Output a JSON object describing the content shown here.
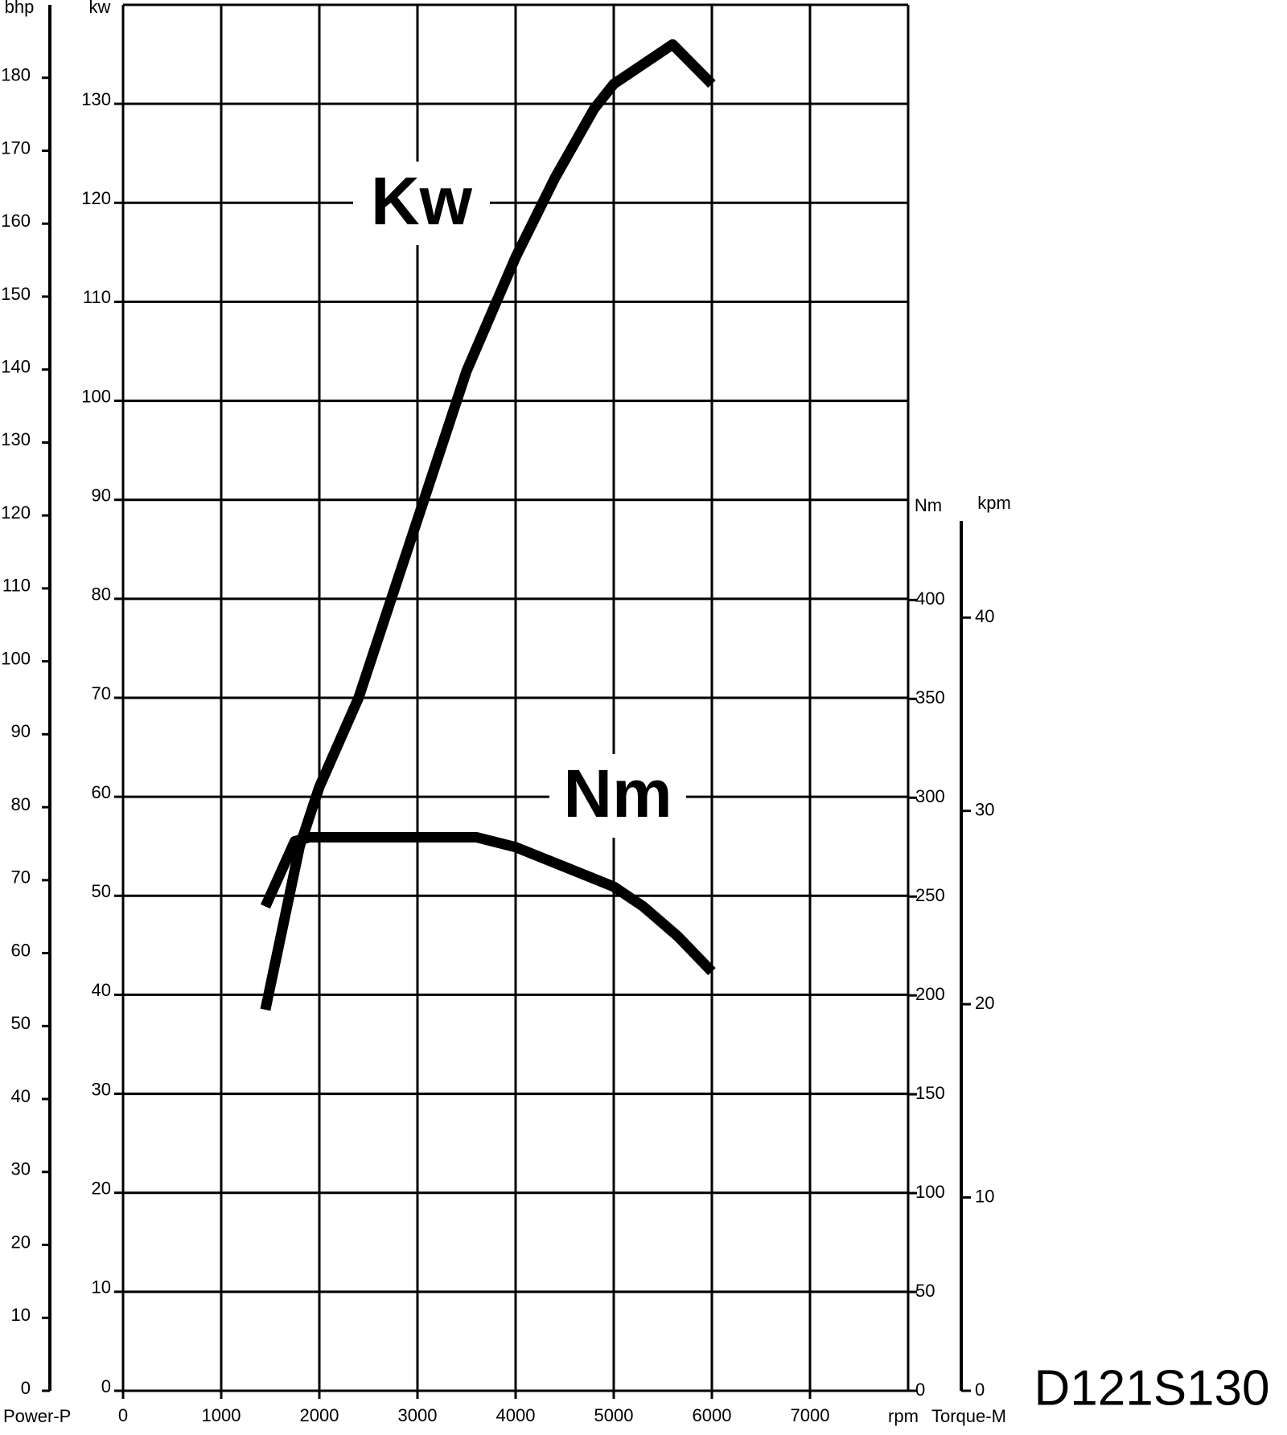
{
  "chart_data": {
    "type": "line",
    "xlabel": "rpm",
    "ylabel": "kw",
    "y2label": "Nm",
    "power_title": "Power-P",
    "torque_title": "Torque-M",
    "annotations": [
      "Kw",
      "Nm"
    ],
    "model": "D121S130",
    "xlim": [
      0,
      8000
    ],
    "xticks": [
      0,
      1000,
      2000,
      3000,
      4000,
      5000,
      6000,
      7000
    ],
    "ylim": [
      0,
      140
    ],
    "yticks": [
      0,
      10,
      20,
      30,
      40,
      50,
      60,
      70,
      80,
      90,
      100,
      110,
      120,
      130
    ],
    "y2lim": [
      0,
      440
    ],
    "y2ticks": [
      0,
      50,
      100,
      150,
      200,
      250,
      300,
      350,
      400
    ],
    "bhp": {
      "label": "bhp",
      "lim": [
        0,
        190
      ],
      "ticks": [
        0,
        10,
        20,
        30,
        40,
        50,
        60,
        70,
        80,
        90,
        100,
        110,
        120,
        130,
        140,
        150,
        160,
        170,
        180
      ]
    },
    "kpm": {
      "label": "kpm",
      "lim": [
        0,
        45
      ],
      "ticks": [
        0,
        10,
        20,
        30,
        40
      ]
    },
    "grid": true,
    "series": [
      {
        "name": "Kw",
        "color": "#000000",
        "x": [
          1450,
          1800,
          2000,
          2400,
          2900,
          3500,
          4000,
          4400,
          4800,
          5000,
          5300,
          5600,
          6000
        ],
        "values": [
          38.5,
          55,
          61,
          70,
          85,
          103,
          114.5,
          122.5,
          129.5,
          132,
          134,
          136,
          132
        ]
      },
      {
        "name": "Nm",
        "color": "#000000",
        "axis": "y2",
        "x": [
          1450,
          1750,
          1900,
          3000,
          3600,
          4000,
          4500,
          5000,
          5300,
          5650,
          6000
        ],
        "values": [
          245,
          278,
          280,
          280,
          280,
          275,
          265,
          255,
          245,
          230,
          212
        ]
      }
    ]
  }
}
